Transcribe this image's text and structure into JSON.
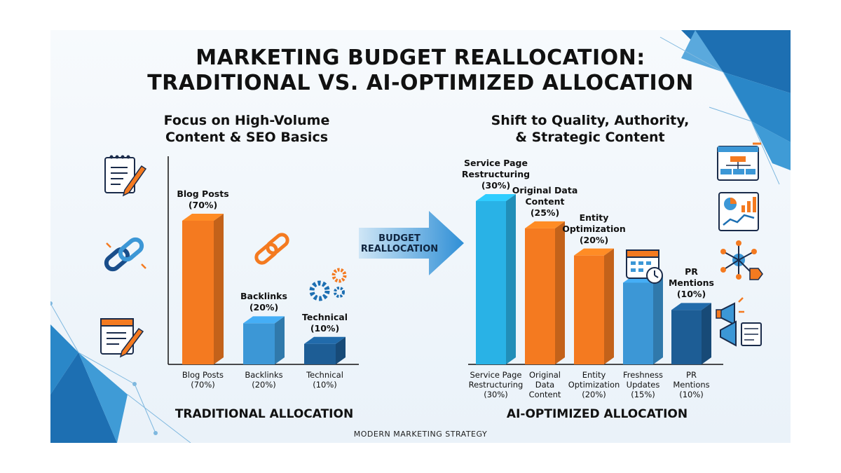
{
  "title_line1": "MARKETING BUDGET REALLOCATION:",
  "title_line2": "TRADITIONAL VS. AI-OPTIMIZED ALLOCATION",
  "left_panel": {
    "subtitle_line1": "Focus on High-Volume",
    "subtitle_line2": "Content & SEO Basics",
    "section_label": "TRADITIONAL ALLOCATION"
  },
  "right_panel": {
    "subtitle_line1": "Shift to Quality, Authority,",
    "subtitle_line2": "& Strategic Content",
    "section_label": "AI-OPTIMIZED ALLOCATION"
  },
  "arrow": {
    "line1": "BUDGET",
    "line2": "REALLOCATION"
  },
  "footer": "MODERN MARKETING STRATEGY",
  "chart_data": [
    {
      "type": "bar",
      "title": "TRADITIONAL ALLOCATION",
      "categories": [
        "Blog Posts",
        "Backlinks",
        "Technical"
      ],
      "values": [
        70,
        20,
        10
      ],
      "value_labels": [
        "(70%)",
        "(20%)",
        "(10%)"
      ],
      "axis_labels": [
        [
          "Blog Posts",
          "(70%)"
        ],
        [
          "Backlinks",
          "(20%)"
        ],
        [
          "Technical",
          "(10%)"
        ]
      ],
      "bar_labels": [
        [
          "Blog Posts",
          "(70%)"
        ],
        [
          "Backlinks",
          "(20%)"
        ],
        [
          "Technical",
          "(10%)"
        ]
      ],
      "colors": [
        "#f47a20",
        "#3c97d6",
        "#1d5d95"
      ],
      "unit": "%",
      "ylim": [
        0,
        70
      ]
    },
    {
      "type": "bar",
      "title": "AI-OPTIMIZED ALLOCATION",
      "categories": [
        "Service Page Restructuring",
        "Original Data Content",
        "Entity Optimization",
        "Freshness Updates",
        "PR Mentions"
      ],
      "values": [
        30,
        25,
        20,
        15,
        10
      ],
      "value_labels": [
        "(30%)",
        "(25%)",
        "(20%)",
        "(15%)",
        "(10%)"
      ],
      "axis_labels": [
        [
          "Service Page",
          "Restructuring",
          "(30%)"
        ],
        [
          "Original",
          "Data",
          "Content"
        ],
        [
          "Entity",
          "Optimization",
          "(20%)"
        ],
        [
          "Freshness",
          "Updates",
          "(15%)"
        ],
        [
          "PR",
          "Mentions",
          "(10%)"
        ]
      ],
      "bar_labels": [
        [
          "Service Page",
          "Restructuring",
          "(30%)"
        ],
        [
          "Original Data",
          "Content",
          "(25%)"
        ],
        [
          "Entity",
          "Optimization",
          "(20%)"
        ],
        [],
        [
          "PR",
          "Mentions",
          "(10%)"
        ]
      ],
      "colors": [
        "#29b2e6",
        "#f47a20",
        "#f47a20",
        "#3c97d6",
        "#1d5d95"
      ],
      "unit": "%",
      "ylim": [
        0,
        30
      ]
    }
  ],
  "icons": {
    "left": [
      "notepad-pencil-icon",
      "chain-link-icon",
      "calendar-pencil-icon"
    ],
    "right": [
      "flowchart-icon",
      "analytics-dashboard-icon",
      "network-tag-icon",
      "megaphone-icon"
    ],
    "chart": [
      "chain-link-icon",
      "gears-icon",
      "calendar-clock-icon"
    ]
  },
  "colors": {
    "orange": "#f47a20",
    "blue": "#3c97d6",
    "dark_blue": "#1d5d95",
    "cyan": "#29b2e6",
    "accent_corner": "#1d6fb2"
  }
}
